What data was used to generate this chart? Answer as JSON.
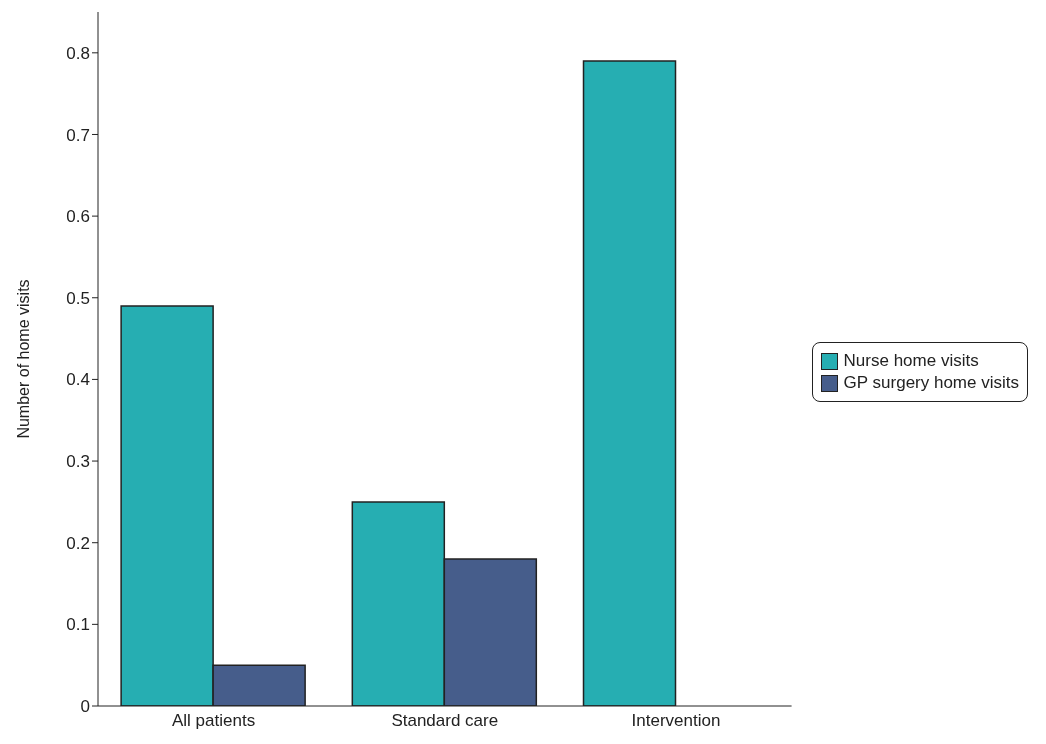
{
  "chart_data": {
    "type": "bar",
    "ylabel": "Number of home visits",
    "categories": [
      "All patients",
      "Standard care",
      "Intervention"
    ],
    "series": [
      {
        "name": "Nurse home visits",
        "color": "#26aeb2",
        "values": [
          0.49,
          0.25,
          0.79
        ]
      },
      {
        "name": "GP surgery home visits",
        "color": "#465d8b",
        "values": [
          0.05,
          0.18,
          0
        ]
      }
    ],
    "ylim": [
      0,
      0.85
    ],
    "yticks": [
      0,
      0.1,
      0.2,
      0.3,
      0.4,
      0.5,
      0.6,
      0.7,
      0.8
    ],
    "grid": false,
    "legend": "right"
  }
}
